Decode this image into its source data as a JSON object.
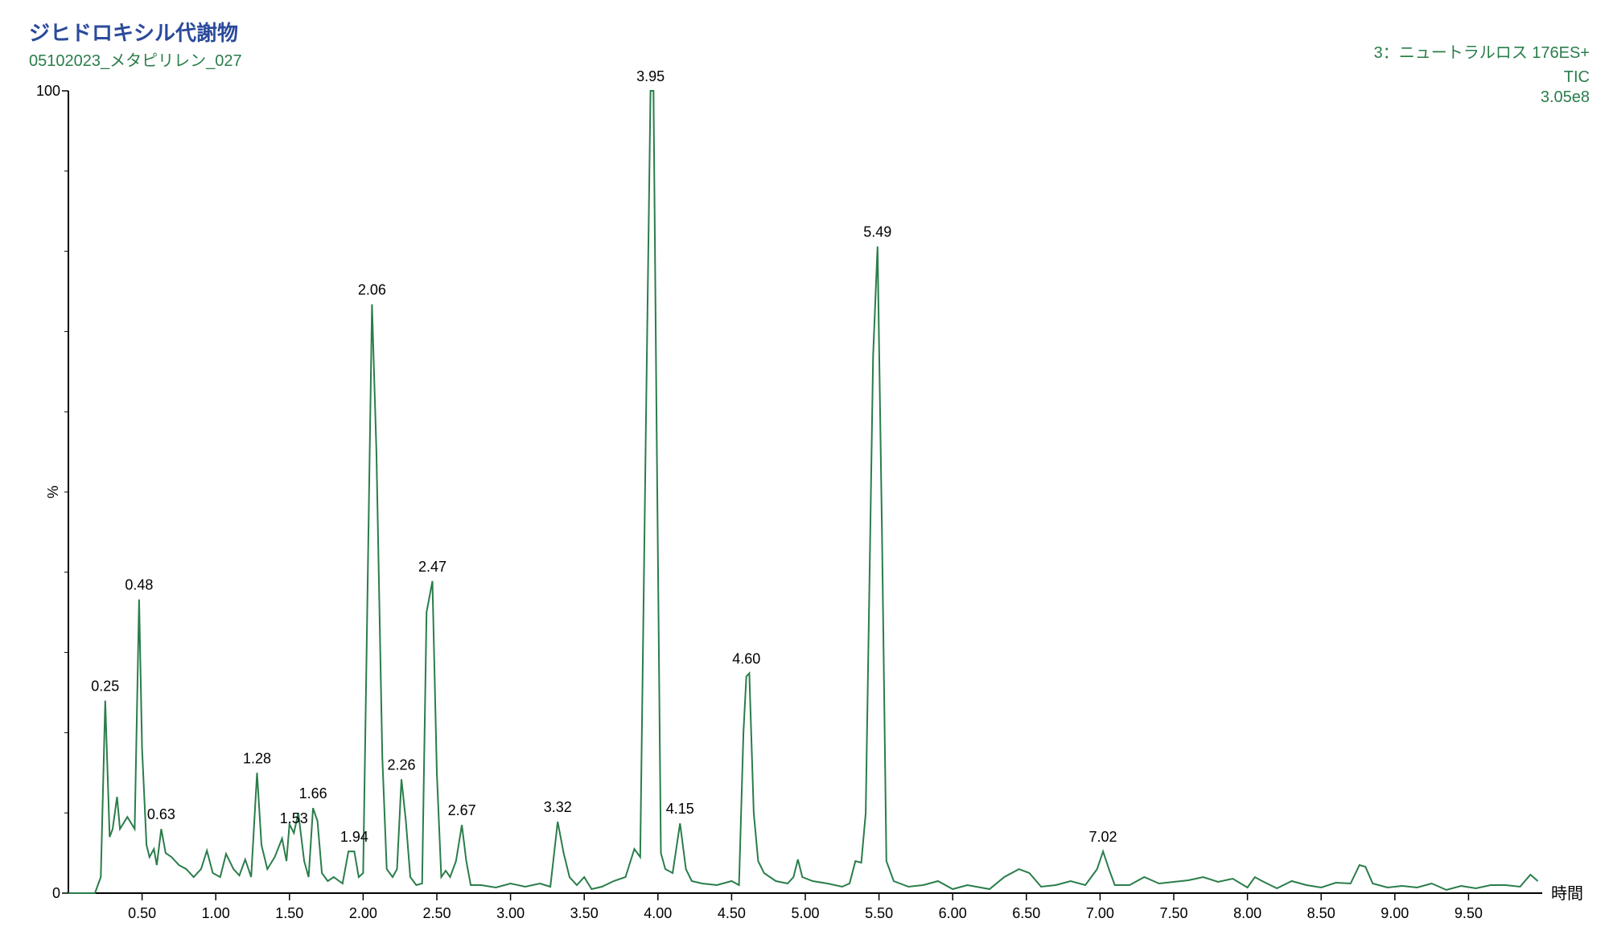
{
  "chart_data": {
    "type": "line",
    "title": "ジヒドロキシル代謝物",
    "subtitle": "05102023_メタピリレン_027",
    "info": [
      "3：ニュートラルロス 176ES+",
      "TIC",
      "3.05e8"
    ],
    "xlabel": "時間",
    "ylabel": "%",
    "xlim": [
      0,
      10
    ],
    "ylim": [
      0,
      100
    ],
    "xticks": [
      {
        "value": 0.5,
        "label": "0.50"
      },
      {
        "value": 1,
        "label": "1.00"
      },
      {
        "value": 1.5,
        "label": "1.50"
      },
      {
        "value": 2,
        "label": "2.00"
      },
      {
        "value": 2.5,
        "label": "2.50"
      },
      {
        "value": 3,
        "label": "3.00"
      },
      {
        "value": 3.5,
        "label": "3.50"
      },
      {
        "value": 4,
        "label": "4.00"
      },
      {
        "value": 4.5,
        "label": "4.50"
      },
      {
        "value": 5,
        "label": "5.00"
      },
      {
        "value": 5.5,
        "label": "5.50"
      },
      {
        "value": 6,
        "label": "6.00"
      },
      {
        "value": 6.5,
        "label": "6.50"
      },
      {
        "value": 7,
        "label": "7.00"
      },
      {
        "value": 7.5,
        "label": "7.50"
      },
      {
        "value": 8,
        "label": "8.00"
      },
      {
        "value": 8.5,
        "label": "8.50"
      },
      {
        "value": 9,
        "label": "9.00"
      },
      {
        "value": 9.5,
        "label": "9.50"
      }
    ],
    "yticks": [
      0,
      100
    ],
    "yticks_minor": [
      10,
      20,
      30,
      40,
      50,
      60,
      70,
      80,
      90
    ],
    "x": [
      0,
      0.18,
      0.22,
      0.25,
      0.28,
      0.3,
      0.33,
      0.35,
      0.4,
      0.45,
      0.48,
      0.5,
      0.53,
      0.55,
      0.58,
      0.6,
      0.63,
      0.66,
      0.7,
      0.75,
      0.8,
      0.85,
      0.9,
      0.94,
      0.98,
      1.03,
      1.07,
      1.12,
      1.16,
      1.2,
      1.24,
      1.28,
      1.31,
      1.35,
      1.4,
      1.45,
      1.48,
      1.5,
      1.53,
      1.56,
      1.6,
      1.63,
      1.66,
      1.69,
      1.72,
      1.76,
      1.8,
      1.86,
      1.9,
      1.94,
      1.97,
      2.0,
      2.06,
      2.09,
      2.13,
      2.16,
      2.2,
      2.23,
      2.26,
      2.29,
      2.32,
      2.36,
      2.4,
      2.43,
      2.47,
      2.5,
      2.53,
      2.56,
      2.59,
      2.63,
      2.67,
      2.7,
      2.73,
      2.8,
      2.9,
      3.0,
      3.1,
      3.2,
      3.27,
      3.32,
      3.36,
      3.4,
      3.45,
      3.5,
      3.55,
      3.62,
      3.7,
      3.78,
      3.84,
      3.88,
      3.92,
      3.95,
      3.97,
      3.99,
      4.02,
      4.05,
      4.1,
      4.15,
      4.19,
      4.23,
      4.3,
      4.4,
      4.5,
      4.55,
      4.58,
      4.6,
      4.62,
      4.65,
      4.68,
      4.72,
      4.8,
      4.88,
      4.92,
      4.95,
      4.98,
      5.05,
      5.15,
      5.25,
      5.3,
      5.34,
      5.38,
      5.41,
      5.46,
      5.49,
      5.52,
      5.55,
      5.6,
      5.7,
      5.8,
      5.9,
      6.0,
      6.1,
      6.25,
      6.35,
      6.45,
      6.52,
      6.6,
      6.7,
      6.8,
      6.9,
      6.98,
      7.02,
      7.06,
      7.1,
      7.2,
      7.3,
      7.4,
      7.5,
      7.6,
      7.7,
      7.8,
      7.9,
      8.0,
      8.05,
      8.1,
      8.2,
      8.3,
      8.4,
      8.5,
      8.6,
      8.7,
      8.76,
      8.8,
      8.85,
      8.95,
      9.05,
      9.15,
      9.25,
      9.35,
      9.45,
      9.55,
      9.65,
      9.75,
      9.85,
      9.92,
      9.97
    ],
    "series": [
      {
        "color": "#2a7d4a",
        "values": [
          0,
          0,
          2,
          24,
          7,
          8,
          12,
          8,
          9.5,
          8,
          36.6,
          18,
          6,
          4.5,
          5.5,
          3.5,
          8,
          5,
          4.5,
          3.5,
          3,
          2,
          3,
          5.3,
          2.5,
          2,
          4.9,
          3,
          2.2,
          4.2,
          2,
          15,
          6,
          3,
          4.5,
          6.8,
          4,
          8.6,
          7.5,
          10,
          4,
          2,
          10.6,
          9,
          2.5,
          1.5,
          2,
          1.2,
          5.2,
          5.2,
          2,
          2.5,
          73.4,
          55,
          17,
          3,
          2,
          3,
          14.2,
          9,
          2,
          1,
          1.2,
          35,
          38.9,
          15,
          2,
          2.8,
          2,
          4,
          8.5,
          4,
          1,
          1,
          0.7,
          1.2,
          0.8,
          1.2,
          0.8,
          8.9,
          5,
          2,
          1,
          2,
          0.5,
          0.8,
          1.5,
          2,
          5.5,
          4.5,
          60,
          100,
          100,
          60,
          5,
          3,
          2.5,
          8.7,
          3,
          1.5,
          1.2,
          1,
          1.5,
          1,
          20,
          27,
          27.4,
          10,
          4,
          2.5,
          1.5,
          1.2,
          2,
          4.2,
          2,
          1.5,
          1.2,
          0.8,
          1.2,
          4,
          3.8,
          10,
          67,
          80.6,
          45,
          4,
          1.5,
          0.8,
          1,
          1.5,
          0.5,
          1,
          0.5,
          2,
          3,
          2.5,
          0.8,
          1,
          1.5,
          1,
          3,
          5.2,
          3,
          1,
          1,
          2,
          1.2,
          1.4,
          1.6,
          2,
          1.4,
          1.8,
          0.7,
          2,
          1.5,
          0.6,
          1.5,
          1,
          0.7,
          1.3,
          1.2,
          3.5,
          3.3,
          1.2,
          0.7,
          0.9,
          0.7,
          1.2,
          0.4,
          0.9,
          0.6,
          1,
          1,
          0.8,
          2.3,
          1.5
        ]
      }
    ],
    "annotations": [
      {
        "text": "0.25",
        "x": 0.25
      },
      {
        "text": "0.48",
        "x": 0.48
      },
      {
        "text": "0.63",
        "x": 0.63
      },
      {
        "text": "1.28",
        "x": 1.28
      },
      {
        "text": "1.53",
        "x": 1.53
      },
      {
        "text": "1.66",
        "x": 1.66
      },
      {
        "text": "1.94",
        "x": 1.94
      },
      {
        "text": "2.06",
        "x": 2.06
      },
      {
        "text": "2.26",
        "x": 2.26
      },
      {
        "text": "2.47",
        "x": 2.47
      },
      {
        "text": "2.67",
        "x": 2.67
      },
      {
        "text": "3.32",
        "x": 3.32
      },
      {
        "text": "3.95",
        "x": 3.95
      },
      {
        "text": "4.15",
        "x": 4.15
      },
      {
        "text": "4.60",
        "x": 4.6
      },
      {
        "text": "5.49",
        "x": 5.49
      },
      {
        "text": "7.02",
        "x": 7.02
      }
    ]
  }
}
